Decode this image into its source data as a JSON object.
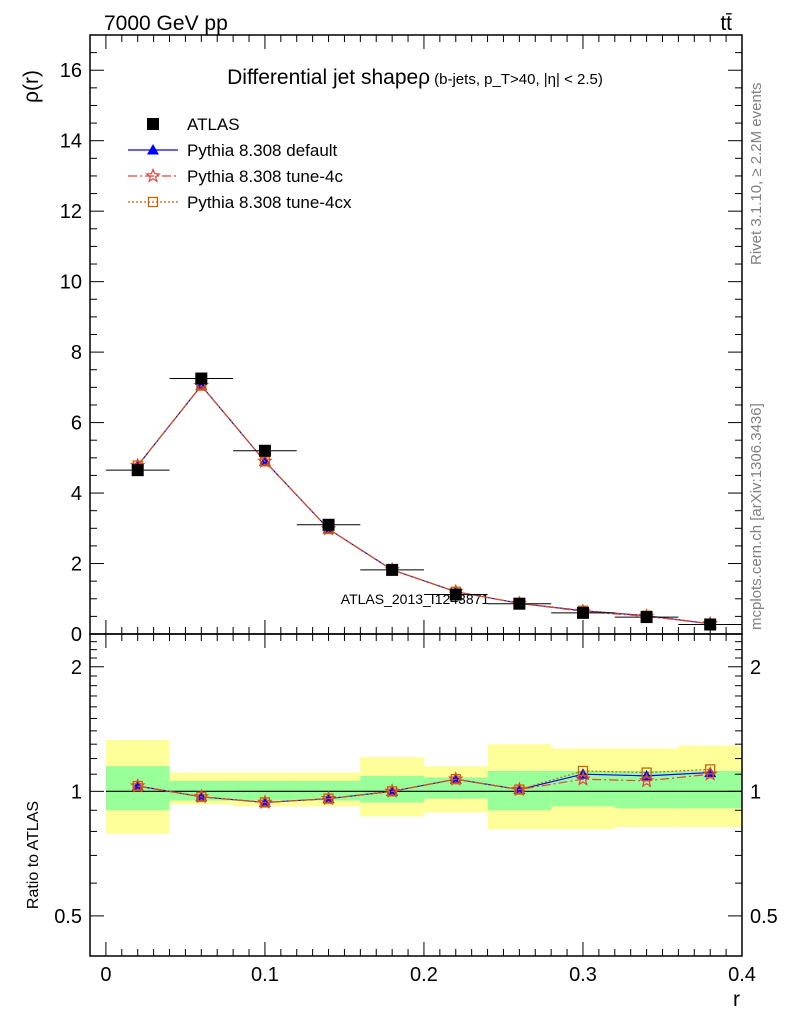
{
  "header": {
    "left_text": "7000 GeV pp",
    "right_text": "tt̄"
  },
  "side_labels": {
    "rivet": "Rivet 3.1.10, ≥ 2.2M events",
    "mcplots": "mcplots.cern.ch [arXiv:1306.3436]"
  },
  "watermark": "ATLAS_2013_I1243871",
  "colors": {
    "atlas": "#000000",
    "default": "#0000ff",
    "tune4c": "#e8403a",
    "tune4cx": "#c86400",
    "band_stat": "#99ff99",
    "band_total": "#ffff99"
  },
  "chart_data": [
    {
      "type": "line",
      "title": "Differential jet shapeρ",
      "title_note": "(b-jets, p_T>40, |η| < 2.5)",
      "ylabel": "ρ(r)",
      "xlim": [
        -0.01,
        0.4
      ],
      "ylim": [
        0,
        17
      ],
      "yticks": [
        0,
        2,
        4,
        6,
        8,
        10,
        12,
        14,
        16
      ],
      "x": [
        0.02,
        0.06,
        0.1,
        0.14,
        0.18,
        0.22,
        0.26,
        0.3,
        0.34,
        0.38
      ],
      "x_halfwidth": 0.02,
      "legend_position": "top-left",
      "series": [
        {
          "name": "ATLAS",
          "marker": "square",
          "values": [
            4.65,
            7.25,
            5.2,
            3.1,
            1.82,
            1.12,
            0.86,
            0.6,
            0.48,
            0.27
          ]
        },
        {
          "name": "Pythia 8.308 default",
          "marker": "triangle",
          "values": [
            4.78,
            7.05,
            4.9,
            2.98,
            1.82,
            1.2,
            0.87,
            0.66,
            0.52,
            0.29
          ]
        },
        {
          "name": "Pythia 8.308 tune-4c",
          "marker": "star",
          "values": [
            4.78,
            7.05,
            4.9,
            2.98,
            1.82,
            1.2,
            0.87,
            0.64,
            0.5,
            0.29
          ]
        },
        {
          "name": "Pythia 8.308 tune-4cx",
          "marker": "open-square",
          "values": [
            4.78,
            7.05,
            4.9,
            2.98,
            1.82,
            1.2,
            0.87,
            0.66,
            0.52,
            0.29
          ]
        }
      ]
    },
    {
      "type": "line",
      "ylabel": "Ratio to ATLAS",
      "xlabel": "r",
      "log_y": true,
      "ylim": [
        0.4,
        2.4
      ],
      "yticks": [
        0.5,
        1,
        2
      ],
      "xticks": [
        0,
        0.1,
        0.2,
        0.3,
        0.4
      ],
      "x": [
        0.02,
        0.06,
        0.1,
        0.14,
        0.18,
        0.22,
        0.26,
        0.3,
        0.34,
        0.38
      ],
      "x_halfwidth": 0.02,
      "stat_band": [
        [
          0.9,
          1.15
        ],
        [
          0.95,
          1.06
        ],
        [
          0.95,
          1.06
        ],
        [
          0.95,
          1.06
        ],
        [
          0.94,
          1.09
        ],
        [
          0.96,
          1.08
        ],
        [
          0.9,
          1.12
        ],
        [
          0.92,
          1.12
        ],
        [
          0.91,
          1.12
        ],
        [
          0.91,
          1.12
        ]
      ],
      "total_band": [
        [
          0.79,
          1.33
        ],
        [
          0.93,
          1.11
        ],
        [
          0.92,
          1.11
        ],
        [
          0.92,
          1.11
        ],
        [
          0.87,
          1.21
        ],
        [
          0.89,
          1.15
        ],
        [
          0.81,
          1.3
        ],
        [
          0.81,
          1.27
        ],
        [
          0.82,
          1.27
        ],
        [
          0.82,
          1.29
        ]
      ],
      "series": [
        {
          "name": "Pythia 8.308 default",
          "values": [
            1.03,
            0.97,
            0.94,
            0.96,
            1.0,
            1.07,
            1.01,
            1.1,
            1.09,
            1.11
          ]
        },
        {
          "name": "Pythia 8.308 tune-4c",
          "values": [
            1.03,
            0.97,
            0.94,
            0.96,
            1.0,
            1.07,
            1.01,
            1.07,
            1.06,
            1.1
          ]
        },
        {
          "name": "Pythia 8.308 tune-4cx",
          "values": [
            1.03,
            0.97,
            0.94,
            0.96,
            1.0,
            1.07,
            1.01,
            1.12,
            1.11,
            1.13
          ]
        }
      ]
    }
  ]
}
